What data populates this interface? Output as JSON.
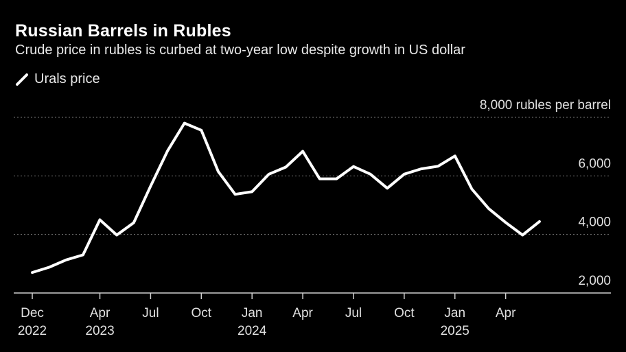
{
  "header": {
    "title": "Russian Barrels in Rubles",
    "subtitle": "Crude price in rubles is curbed at two-year low despite growth in US dollar"
  },
  "legend": {
    "label": "Urals price",
    "color": "#ffffff"
  },
  "chart_data": {
    "type": "line",
    "title": "Russian Barrels in Rubles",
    "subtitle": "Crude price in rubles is curbed at two-year low despite growth in US dollar",
    "ylabel": "",
    "xlabel": "",
    "unit_label": "8,000 rubles per barrel",
    "ylim": [
      1500,
      8000
    ],
    "y_ticks": [
      {
        "value": 8000,
        "label": "8,000 rubles per barrel"
      },
      {
        "value": 6000,
        "label": "6,000"
      },
      {
        "value": 4000,
        "label": "4,000"
      },
      {
        "value": 2000,
        "label": "2,000"
      }
    ],
    "grid": true,
    "x_ticks": [
      {
        "value": "2022-12",
        "lines": [
          "Dec",
          "2022"
        ]
      },
      {
        "value": "2023-04",
        "lines": [
          "Apr",
          "2023"
        ]
      },
      {
        "value": "2023-07",
        "lines": [
          "Jul"
        ]
      },
      {
        "value": "2023-10",
        "lines": [
          "Oct"
        ]
      },
      {
        "value": "2024-01",
        "lines": [
          "Jan",
          "2024"
        ]
      },
      {
        "value": "2024-04",
        "lines": [
          "Apr"
        ]
      },
      {
        "value": "2024-07",
        "lines": [
          "Jul"
        ]
      },
      {
        "value": "2024-10",
        "lines": [
          "Oct"
        ]
      },
      {
        "value": "2025-01",
        "lines": [
          "Jan",
          "2025"
        ]
      },
      {
        "value": "2025-04",
        "lines": [
          "Apr"
        ]
      }
    ],
    "series": [
      {
        "name": "Urals price",
        "color": "#ffffff",
        "points": [
          {
            "x": "2022-12",
            "y": 2700
          },
          {
            "x": "2023-01",
            "y": 2880
          },
          {
            "x": "2023-02",
            "y": 3130
          },
          {
            "x": "2023-03",
            "y": 3300
          },
          {
            "x": "2023-04",
            "y": 4500
          },
          {
            "x": "2023-05",
            "y": 3980
          },
          {
            "x": "2023-06",
            "y": 4400
          },
          {
            "x": "2023-07",
            "y": 5650
          },
          {
            "x": "2023-08",
            "y": 6850
          },
          {
            "x": "2023-09",
            "y": 7800
          },
          {
            "x": "2023-10",
            "y": 7560
          },
          {
            "x": "2023-11",
            "y": 6150
          },
          {
            "x": "2023-12",
            "y": 5370
          },
          {
            "x": "2024-01",
            "y": 5460
          },
          {
            "x": "2024-02",
            "y": 6060
          },
          {
            "x": "2024-03",
            "y": 6300
          },
          {
            "x": "2024-04",
            "y": 6840
          },
          {
            "x": "2024-05",
            "y": 5900
          },
          {
            "x": "2024-06",
            "y": 5900
          },
          {
            "x": "2024-07",
            "y": 6320
          },
          {
            "x": "2024-08",
            "y": 6060
          },
          {
            "x": "2024-09",
            "y": 5580
          },
          {
            "x": "2024-10",
            "y": 6060
          },
          {
            "x": "2024-11",
            "y": 6240
          },
          {
            "x": "2024-12",
            "y": 6330
          },
          {
            "x": "2025-01",
            "y": 6680
          },
          {
            "x": "2025-02",
            "y": 5550
          },
          {
            "x": "2025-03",
            "y": 4880
          },
          {
            "x": "2025-04",
            "y": 4410
          },
          {
            "x": "2025-05",
            "y": 3980
          },
          {
            "x": "2025-06",
            "y": 4440
          }
        ]
      }
    ]
  }
}
